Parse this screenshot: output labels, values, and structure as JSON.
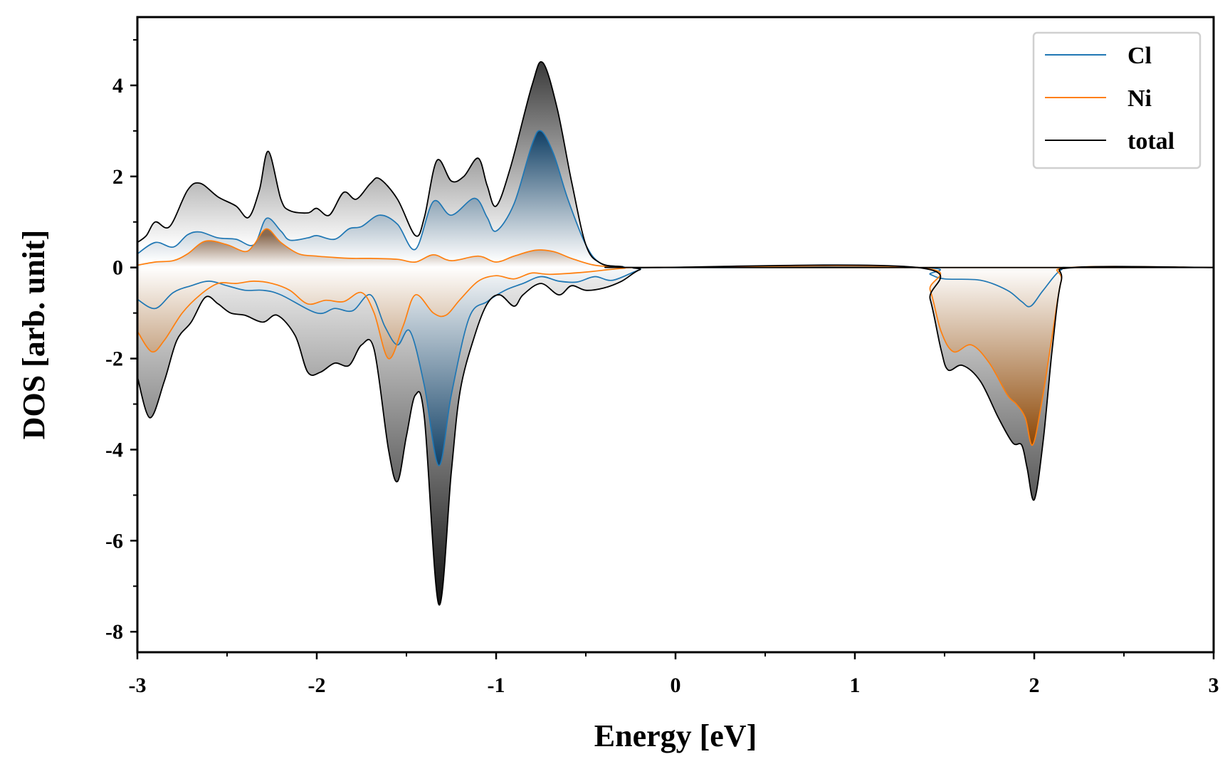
{
  "chart_data": {
    "type": "area",
    "xlabel": "Energy [eV]",
    "ylabel": "DOS [arb. unit]",
    "xlim": [
      -3,
      3
    ],
    "ylim": [
      -8.45,
      5.5
    ],
    "xticks": [
      -3,
      -2,
      -1,
      0,
      1,
      2,
      3
    ],
    "xtick_labels": [
      "-3",
      "-2",
      "-1",
      "0",
      "1",
      "2",
      "3"
    ],
    "yticks": [
      -8,
      -6,
      -4,
      -2,
      0,
      2,
      4
    ],
    "ytick_labels": [
      "-8",
      "-6",
      "-4",
      "-2",
      "0",
      "2",
      "4"
    ],
    "grid": false,
    "legend_position": "top-right",
    "series": [
      {
        "name": "Cl",
        "color": "#1f77b4",
        "up": [
          [
            -3,
            0.3
          ],
          [
            -2.9,
            0.55
          ],
          [
            -2.8,
            0.45
          ],
          [
            -2.72,
            0.72
          ],
          [
            -2.65,
            0.78
          ],
          [
            -2.55,
            0.65
          ],
          [
            -2.45,
            0.62
          ],
          [
            -2.35,
            0.5
          ],
          [
            -2.28,
            1.08
          ],
          [
            -2.2,
            0.8
          ],
          [
            -2.15,
            0.6
          ],
          [
            -2.05,
            0.65
          ],
          [
            -2.0,
            0.7
          ],
          [
            -1.9,
            0.62
          ],
          [
            -1.82,
            0.85
          ],
          [
            -1.75,
            0.9
          ],
          [
            -1.65,
            1.15
          ],
          [
            -1.55,
            0.95
          ],
          [
            -1.45,
            0.4
          ],
          [
            -1.35,
            1.45
          ],
          [
            -1.25,
            1.15
          ],
          [
            -1.12,
            1.52
          ],
          [
            -1.05,
            1.1
          ],
          [
            -1.0,
            0.8
          ],
          [
            -0.9,
            1.4
          ],
          [
            -0.8,
            2.7
          ],
          [
            -0.75,
            3.0
          ],
          [
            -0.68,
            2.5
          ],
          [
            -0.6,
            1.5
          ],
          [
            -0.5,
            0.5
          ],
          [
            -0.42,
            0.1
          ],
          [
            -0.3,
            0.02
          ],
          [
            -0.1,
            0
          ],
          [
            1.4,
            0
          ],
          [
            1.5,
            0
          ],
          [
            3,
            0
          ]
        ],
        "down": [
          [
            -3,
            -0.7
          ],
          [
            -2.9,
            -0.9
          ],
          [
            -2.8,
            -0.55
          ],
          [
            -2.7,
            -0.4
          ],
          [
            -2.6,
            -0.3
          ],
          [
            -2.5,
            -0.4
          ],
          [
            -2.4,
            -0.5
          ],
          [
            -2.3,
            -0.5
          ],
          [
            -2.2,
            -0.6
          ],
          [
            -2.0,
            -1.0
          ],
          [
            -1.9,
            -0.9
          ],
          [
            -1.8,
            -0.95
          ],
          [
            -1.7,
            -0.6
          ],
          [
            -1.62,
            -1.3
          ],
          [
            -1.55,
            -1.7
          ],
          [
            -1.48,
            -1.4
          ],
          [
            -1.4,
            -2.6
          ],
          [
            -1.32,
            -4.35
          ],
          [
            -1.25,
            -2.8
          ],
          [
            -1.15,
            -1.1
          ],
          [
            -1.05,
            -0.75
          ],
          [
            -0.95,
            -0.5
          ],
          [
            -0.85,
            -0.35
          ],
          [
            -0.75,
            -0.2
          ],
          [
            -0.65,
            -0.3
          ],
          [
            -0.55,
            -0.32
          ],
          [
            -0.45,
            -0.2
          ],
          [
            -0.35,
            -0.28
          ],
          [
            -0.2,
            -0.05
          ],
          [
            -0.1,
            0
          ],
          [
            1.35,
            0
          ],
          [
            1.42,
            -0.15
          ],
          [
            1.5,
            -0.25
          ],
          [
            1.7,
            -0.28
          ],
          [
            1.85,
            -0.5
          ],
          [
            1.93,
            -0.75
          ],
          [
            1.98,
            -0.85
          ],
          [
            2.05,
            -0.5
          ],
          [
            2.15,
            -0.05
          ],
          [
            2.25,
            0
          ],
          [
            3,
            0
          ]
        ]
      },
      {
        "name": "Ni",
        "color": "#ff7f0e",
        "up": [
          [
            -3,
            0.05
          ],
          [
            -2.9,
            0.12
          ],
          [
            -2.8,
            0.15
          ],
          [
            -2.72,
            0.3
          ],
          [
            -2.62,
            0.58
          ],
          [
            -2.5,
            0.5
          ],
          [
            -2.4,
            0.35
          ],
          [
            -2.35,
            0.5
          ],
          [
            -2.28,
            0.85
          ],
          [
            -2.2,
            0.55
          ],
          [
            -2.1,
            0.3
          ],
          [
            -2.0,
            0.25
          ],
          [
            -1.9,
            0.22
          ],
          [
            -1.8,
            0.2
          ],
          [
            -1.7,
            0.2
          ],
          [
            -1.55,
            0.18
          ],
          [
            -1.45,
            0.12
          ],
          [
            -1.35,
            0.28
          ],
          [
            -1.25,
            0.15
          ],
          [
            -1.1,
            0.25
          ],
          [
            -1.0,
            0.12
          ],
          [
            -0.9,
            0.25
          ],
          [
            -0.78,
            0.38
          ],
          [
            -0.68,
            0.35
          ],
          [
            -0.58,
            0.2
          ],
          [
            -0.45,
            0.05
          ],
          [
            -0.3,
            0.01
          ],
          [
            -0.1,
            0
          ],
          [
            3,
            0
          ]
        ],
        "down": [
          [
            -3,
            -1.4
          ],
          [
            -2.92,
            -1.85
          ],
          [
            -2.85,
            -1.6
          ],
          [
            -2.75,
            -1.0
          ],
          [
            -2.65,
            -0.6
          ],
          [
            -2.55,
            -0.35
          ],
          [
            -2.45,
            -0.35
          ],
          [
            -2.35,
            -0.3
          ],
          [
            -2.25,
            -0.35
          ],
          [
            -2.15,
            -0.5
          ],
          [
            -2.05,
            -0.8
          ],
          [
            -1.95,
            -0.72
          ],
          [
            -1.85,
            -0.75
          ],
          [
            -1.75,
            -0.55
          ],
          [
            -1.68,
            -1.0
          ],
          [
            -1.6,
            -2.0
          ],
          [
            -1.52,
            -1.3
          ],
          [
            -1.45,
            -0.6
          ],
          [
            -1.35,
            -1.0
          ],
          [
            -1.28,
            -1.05
          ],
          [
            -1.2,
            -0.7
          ],
          [
            -1.1,
            -0.3
          ],
          [
            -1.0,
            -0.18
          ],
          [
            -0.9,
            -0.25
          ],
          [
            -0.8,
            -0.12
          ],
          [
            -0.7,
            -0.15
          ],
          [
            -0.5,
            -0.1
          ],
          [
            -0.3,
            -0.02
          ],
          [
            -0.1,
            0
          ],
          [
            1.35,
            0
          ],
          [
            1.42,
            -0.5
          ],
          [
            1.48,
            -1.4
          ],
          [
            1.55,
            -1.85
          ],
          [
            1.65,
            -1.7
          ],
          [
            1.75,
            -2.1
          ],
          [
            1.85,
            -2.8
          ],
          [
            1.9,
            -3.0
          ],
          [
            1.95,
            -3.3
          ],
          [
            1.99,
            -3.9
          ],
          [
            2.04,
            -3.0
          ],
          [
            2.1,
            -1.5
          ],
          [
            2.15,
            -0.3
          ],
          [
            2.2,
            0
          ],
          [
            3,
            0
          ]
        ]
      },
      {
        "name": "total",
        "color": "#000000",
        "up": [
          [
            -3,
            0.55
          ],
          [
            -2.95,
            0.7
          ],
          [
            -2.9,
            1.0
          ],
          [
            -2.82,
            0.9
          ],
          [
            -2.72,
            1.7
          ],
          [
            -2.65,
            1.85
          ],
          [
            -2.55,
            1.55
          ],
          [
            -2.45,
            1.35
          ],
          [
            -2.38,
            1.1
          ],
          [
            -2.32,
            1.7
          ],
          [
            -2.27,
            2.55
          ],
          [
            -2.2,
            1.5
          ],
          [
            -2.15,
            1.25
          ],
          [
            -2.05,
            1.2
          ],
          [
            -2.0,
            1.3
          ],
          [
            -1.93,
            1.15
          ],
          [
            -1.85,
            1.65
          ],
          [
            -1.78,
            1.5
          ],
          [
            -1.7,
            1.85
          ],
          [
            -1.65,
            1.95
          ],
          [
            -1.55,
            1.5
          ],
          [
            -1.45,
            0.7
          ],
          [
            -1.4,
            1.1
          ],
          [
            -1.33,
            2.35
          ],
          [
            -1.25,
            1.9
          ],
          [
            -1.18,
            2.0
          ],
          [
            -1.1,
            2.4
          ],
          [
            -1.05,
            1.8
          ],
          [
            -1.0,
            1.35
          ],
          [
            -0.92,
            2.2
          ],
          [
            -0.8,
            4.0
          ],
          [
            -0.74,
            4.5
          ],
          [
            -0.66,
            3.5
          ],
          [
            -0.58,
            1.9
          ],
          [
            -0.5,
            0.5
          ],
          [
            -0.42,
            0.1
          ],
          [
            -0.3,
            0.02
          ],
          [
            -0.1,
            0
          ],
          [
            3,
            0
          ]
        ],
        "down": [
          [
            -3,
            -2.4
          ],
          [
            -2.93,
            -3.3
          ],
          [
            -2.85,
            -2.5
          ],
          [
            -2.78,
            -1.6
          ],
          [
            -2.7,
            -1.2
          ],
          [
            -2.62,
            -0.65
          ],
          [
            -2.55,
            -0.8
          ],
          [
            -2.48,
            -1.0
          ],
          [
            -2.4,
            -1.05
          ],
          [
            -2.3,
            -1.2
          ],
          [
            -2.22,
            -1.05
          ],
          [
            -2.12,
            -1.5
          ],
          [
            -2.05,
            -2.3
          ],
          [
            -1.98,
            -2.3
          ],
          [
            -1.9,
            -2.1
          ],
          [
            -1.82,
            -2.15
          ],
          [
            -1.75,
            -1.7
          ],
          [
            -1.68,
            -1.8
          ],
          [
            -1.6,
            -4.0
          ],
          [
            -1.55,
            -4.7
          ],
          [
            -1.5,
            -3.7
          ],
          [
            -1.45,
            -2.8
          ],
          [
            -1.4,
            -3.3
          ],
          [
            -1.32,
            -7.4
          ],
          [
            -1.25,
            -4.5
          ],
          [
            -1.2,
            -2.7
          ],
          [
            -1.12,
            -1.5
          ],
          [
            -1.05,
            -0.8
          ],
          [
            -0.98,
            -0.6
          ],
          [
            -0.9,
            -0.85
          ],
          [
            -0.85,
            -0.6
          ],
          [
            -0.75,
            -0.35
          ],
          [
            -0.65,
            -0.6
          ],
          [
            -0.58,
            -0.4
          ],
          [
            -0.5,
            -0.5
          ],
          [
            -0.4,
            -0.45
          ],
          [
            -0.3,
            -0.3
          ],
          [
            -0.2,
            -0.05
          ],
          [
            -0.1,
            0
          ],
          [
            1.35,
            0
          ],
          [
            1.42,
            -0.7
          ],
          [
            1.48,
            -1.8
          ],
          [
            1.52,
            -2.25
          ],
          [
            1.6,
            -2.15
          ],
          [
            1.7,
            -2.5
          ],
          [
            1.8,
            -3.3
          ],
          [
            1.88,
            -3.85
          ],
          [
            1.93,
            -3.9
          ],
          [
            1.96,
            -4.4
          ],
          [
            2.0,
            -5.1
          ],
          [
            2.05,
            -3.8
          ],
          [
            2.1,
            -1.8
          ],
          [
            2.15,
            -0.3
          ],
          [
            2.22,
            0
          ],
          [
            3,
            0
          ]
        ]
      }
    ]
  }
}
